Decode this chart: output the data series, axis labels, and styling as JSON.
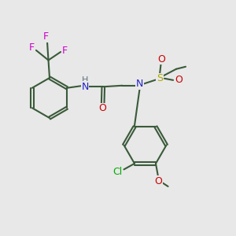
{
  "bg_color": "#e8e8e8",
  "bond_color": "#3a5a3a",
  "bond_lw": 1.5,
  "colors": {
    "N": "#2222cc",
    "O": "#cc0000",
    "F": "#cc00cc",
    "Cl": "#00aa00",
    "S": "#aaaa00",
    "C_bond": "#3a5a3a",
    "H": "#607080"
  },
  "font_size": 9,
  "fig_size": [
    3.0,
    3.0
  ],
  "dpi": 100
}
